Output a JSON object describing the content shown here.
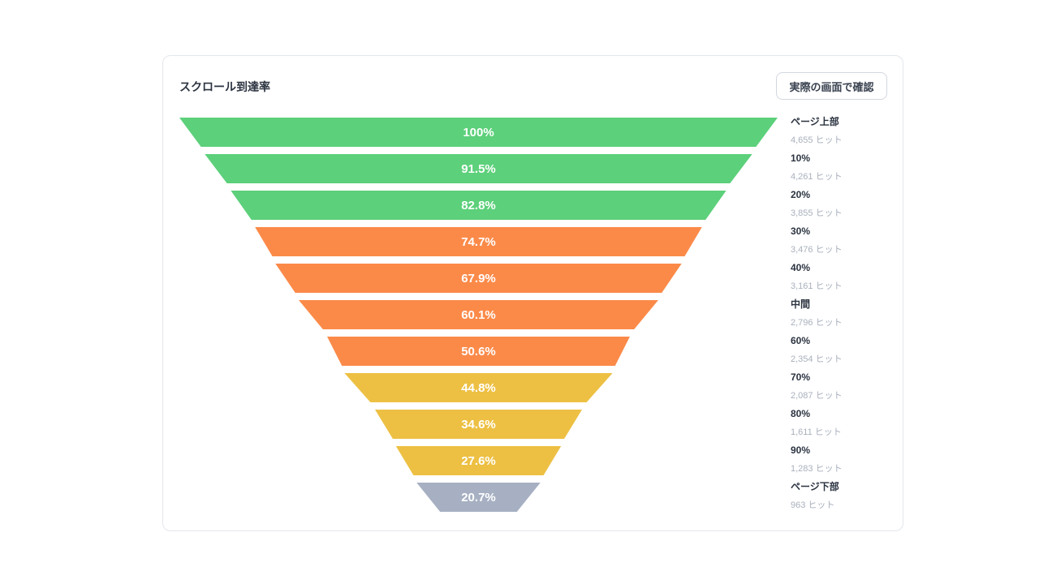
{
  "card": {
    "title": "スクロール到達率",
    "view_button_label": "実際の画面で確認"
  },
  "colors": {
    "green": "#5cd07a",
    "orange": "#fb8a49",
    "yellow": "#edc043",
    "gray": "#a6b0c2"
  },
  "chart_data": {
    "type": "funnel",
    "title": "スクロール到達率",
    "stages": [
      {
        "name": "ページ上部",
        "percent": 100,
        "label": "100%",
        "hits": "4,655 ヒット",
        "color": "green"
      },
      {
        "name": "10%",
        "percent": 91.5,
        "label": "91.5%",
        "hits": "4,261 ヒット",
        "color": "green"
      },
      {
        "name": "20%",
        "percent": 82.8,
        "label": "82.8%",
        "hits": "3,855 ヒット",
        "color": "green"
      },
      {
        "name": "30%",
        "percent": 74.7,
        "label": "74.7%",
        "hits": "3,476 ヒット",
        "color": "orange"
      },
      {
        "name": "40%",
        "percent": 67.9,
        "label": "67.9%",
        "hits": "3,161 ヒット",
        "color": "orange"
      },
      {
        "name": "中間",
        "percent": 60.1,
        "label": "60.1%",
        "hits": "2,796 ヒット",
        "color": "orange"
      },
      {
        "name": "60%",
        "percent": 50.6,
        "label": "50.6%",
        "hits": "2,354 ヒット",
        "color": "orange"
      },
      {
        "name": "70%",
        "percent": 44.8,
        "label": "44.8%",
        "hits": "2,087 ヒット",
        "color": "yellow"
      },
      {
        "name": "80%",
        "percent": 34.6,
        "label": "34.6%",
        "hits": "1,611 ヒット",
        "color": "yellow"
      },
      {
        "name": "90%",
        "percent": 27.6,
        "label": "27.6%",
        "hits": "1,283 ヒット",
        "color": "yellow"
      },
      {
        "name": "ページ下部",
        "percent": 20.7,
        "label": "20.7%",
        "hits": "963 ヒット",
        "color": "gray"
      }
    ]
  }
}
